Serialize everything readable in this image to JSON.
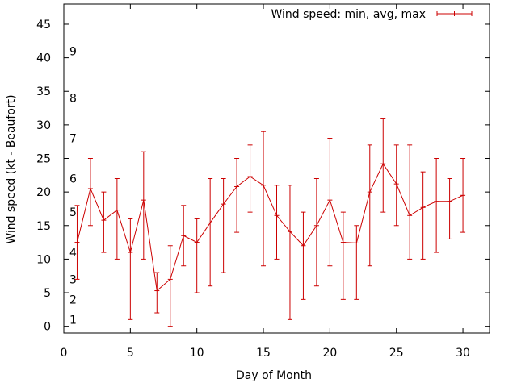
{
  "chart_data": {
    "type": "line",
    "xlabel": "Day of Month",
    "ylabel": "Wind speed (kt - Beaufort)",
    "xlim": [
      0,
      32
    ],
    "ylim": [
      -1,
      48
    ],
    "x_ticks": [
      0,
      5,
      10,
      15,
      20,
      25,
      30
    ],
    "y_ticks": [
      0,
      5,
      10,
      15,
      20,
      25,
      30,
      35,
      40,
      45
    ],
    "beaufort_labels": [
      {
        "label": "1",
        "kt": 1
      },
      {
        "label": "2",
        "kt": 4
      },
      {
        "label": "3",
        "kt": 7
      },
      {
        "label": "4",
        "kt": 11
      },
      {
        "label": "5",
        "kt": 17
      },
      {
        "label": "6",
        "kt": 22
      },
      {
        "label": "7",
        "kt": 28
      },
      {
        "label": "8",
        "kt": 34
      },
      {
        "label": "9",
        "kt": 41
      }
    ],
    "legend_position": "top-right",
    "grid": false,
    "series": [
      {
        "name": "Wind speed: min, avg, max",
        "color": "#cc0000",
        "x": [
          1,
          2,
          3,
          4,
          5,
          6,
          7,
          8,
          9,
          10,
          11,
          12,
          13,
          14,
          15,
          16,
          17,
          18,
          19,
          20,
          21,
          22,
          23,
          24,
          25,
          26,
          27,
          28,
          29,
          30
        ],
        "min": [
          7,
          15,
          11,
          10,
          1,
          10,
          2,
          0,
          9,
          5,
          6,
          8,
          14,
          17,
          9,
          10,
          1,
          4,
          6,
          9,
          4,
          4,
          9,
          17,
          15,
          10,
          10,
          11,
          13,
          14
        ],
        "avg": [
          12.5,
          20.5,
          15.8,
          17.3,
          11,
          18.8,
          5.3,
          7,
          13.5,
          12.5,
          15.4,
          18.2,
          20.8,
          22.3,
          21,
          16.5,
          14.1,
          12,
          15,
          18.8,
          12.5,
          12.4,
          20,
          24.2,
          21.2,
          16.5,
          17.7,
          18.6,
          18.6,
          19.5
        ],
        "max": [
          18,
          25,
          20,
          22,
          16,
          26,
          8,
          12,
          18,
          16,
          22,
          22,
          25,
          27,
          29,
          21,
          21,
          17,
          22,
          28,
          17,
          15,
          27,
          31,
          27,
          27,
          23,
          25,
          22,
          25
        ]
      }
    ]
  }
}
